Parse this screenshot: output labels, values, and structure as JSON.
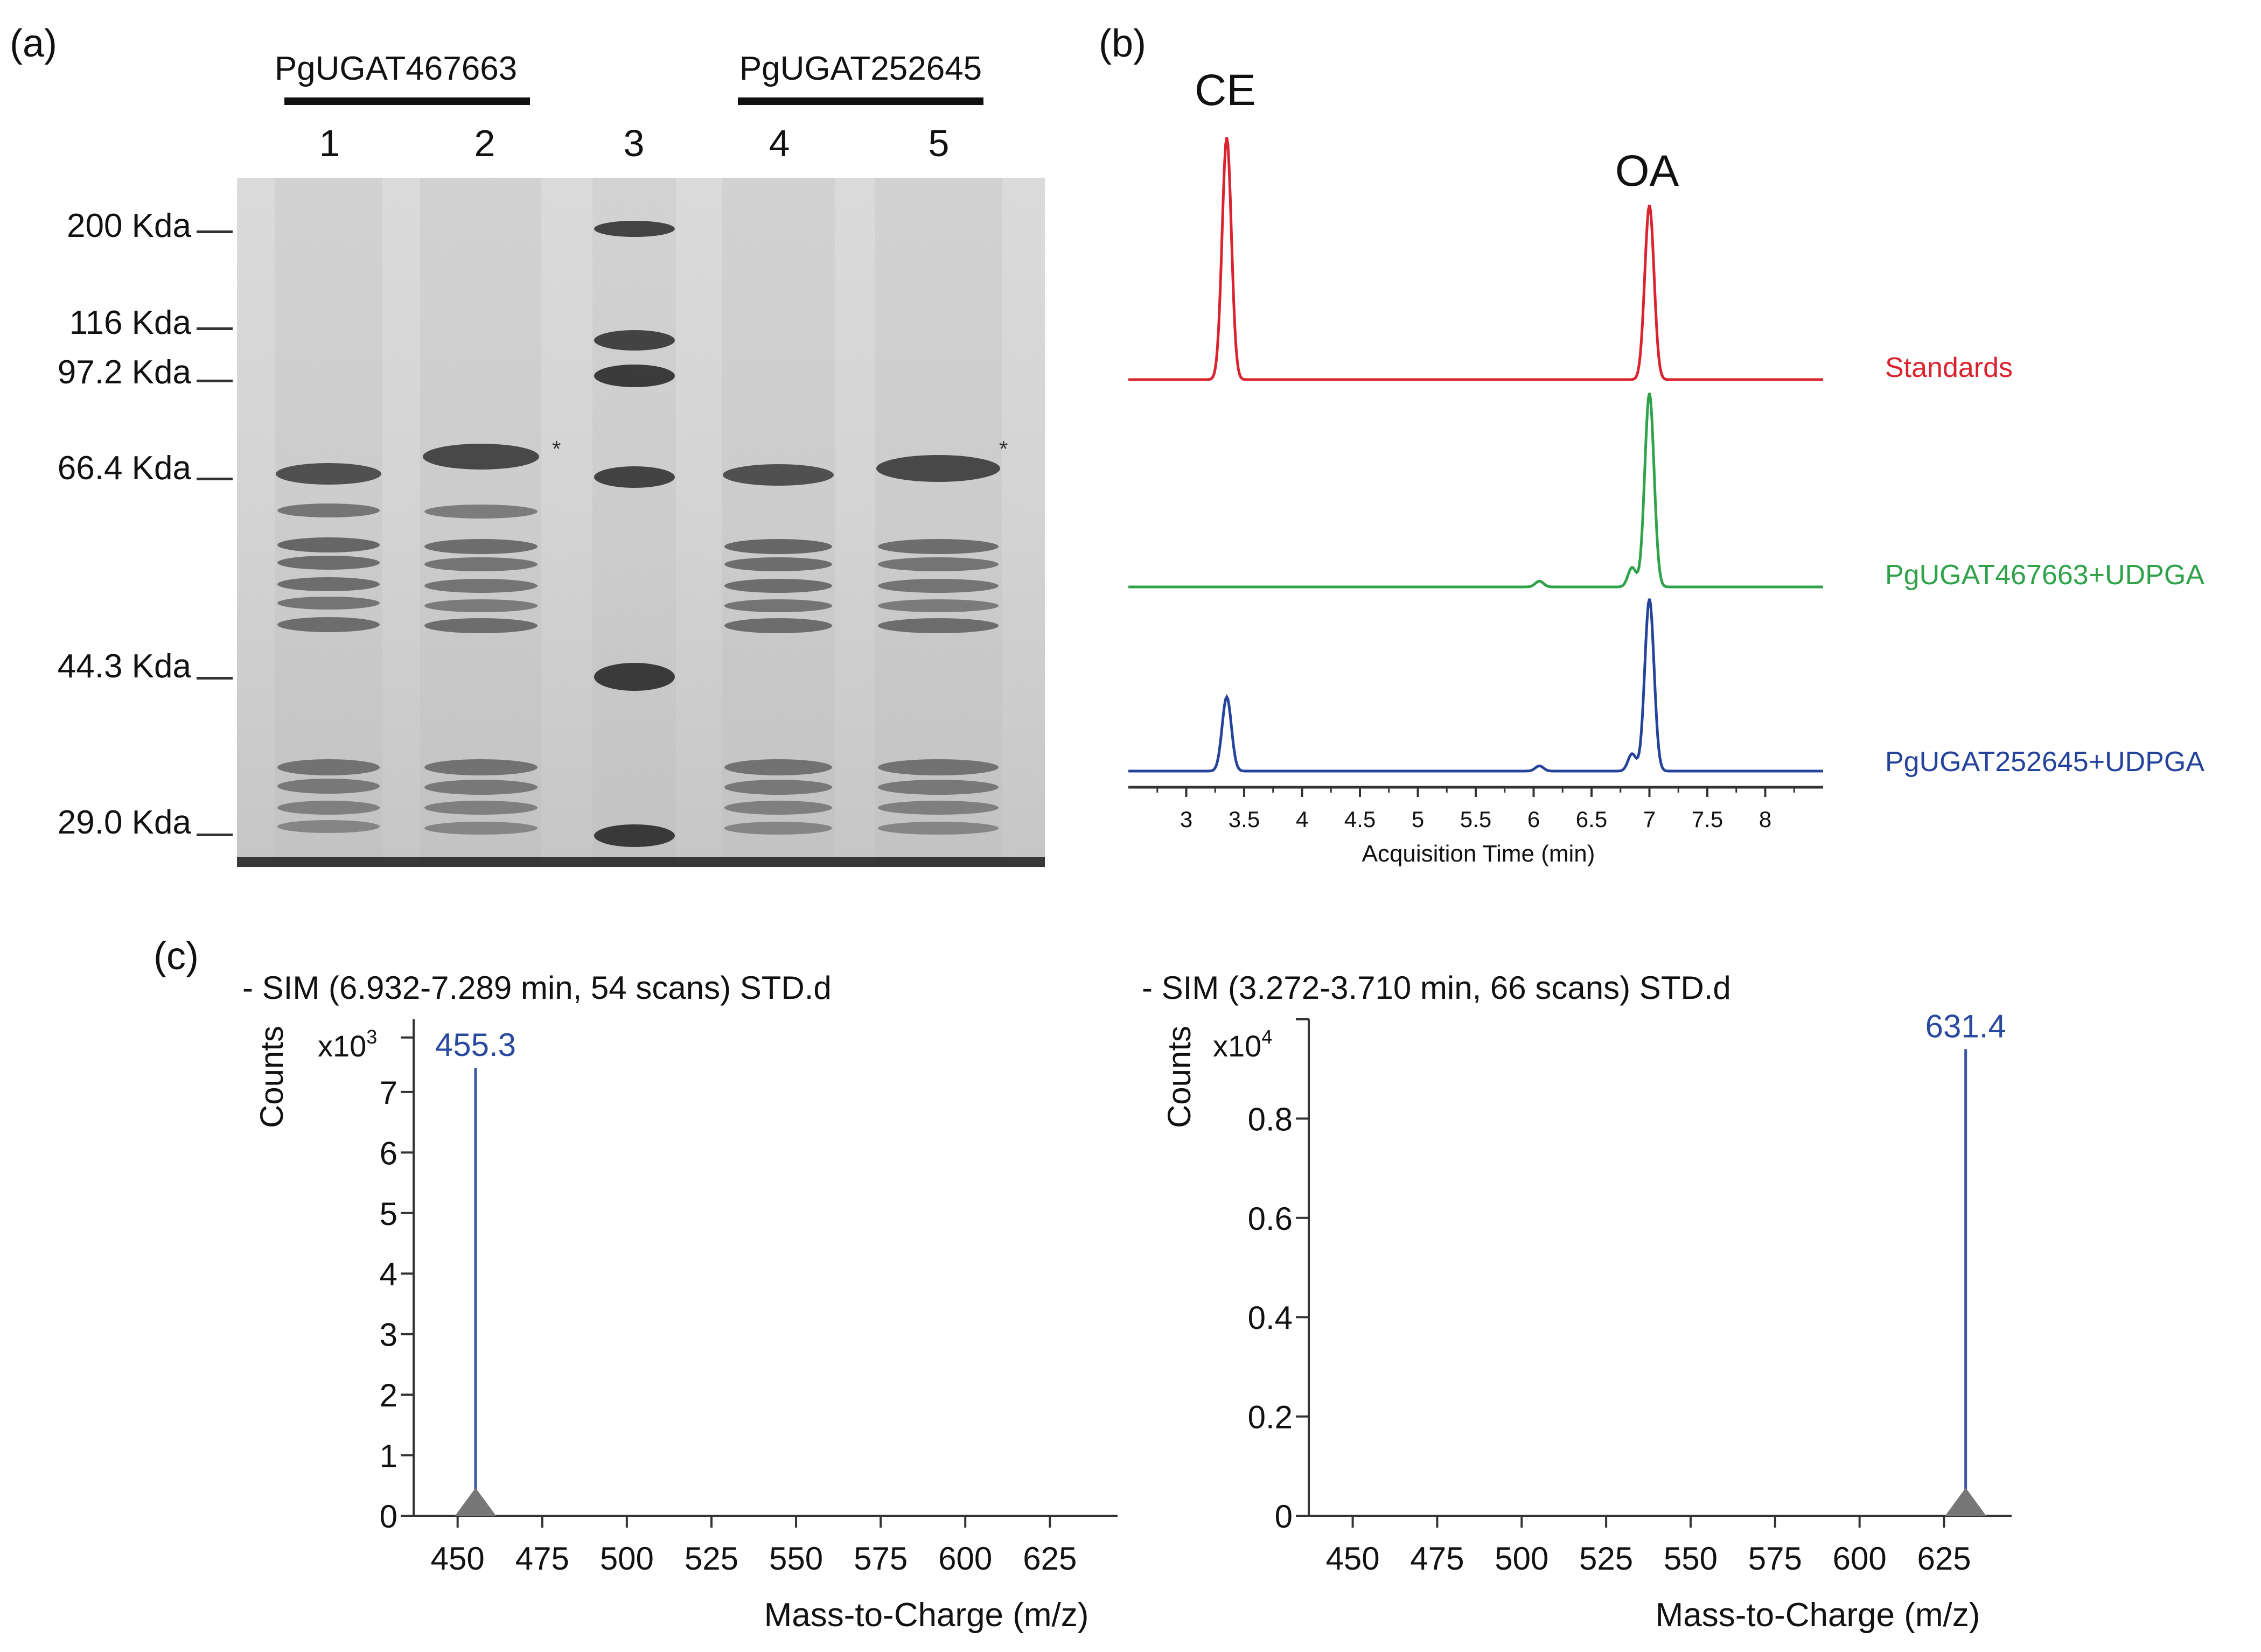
{
  "panel_a": {
    "label": "(a)",
    "group_labels": [
      "PgUGAT467663",
      "PgUGAT252645"
    ],
    "lane_labels": [
      "1",
      "2",
      "3",
      "4",
      "5"
    ],
    "marker_labels": [
      "200 Kda",
      "116 Kda",
      "97.2 Kda",
      "66.4 Kda",
      "44.3 Kda",
      "29.0 Kda"
    ],
    "band_mark": "*"
  },
  "panel_b": {
    "label": "(b)",
    "peak_labels": [
      "CE",
      "OA"
    ],
    "trace_labels": [
      "Standards",
      "PgUGAT467663+UDPGA",
      "PgUGAT252645+UDPGA"
    ],
    "trace_colors": [
      "#d9232e",
      "#2fa24a",
      "#24439a"
    ],
    "xlabel": "Acquisition Time (min)",
    "xticks": [
      "3",
      "3.5",
      "4",
      "4.5",
      "5",
      "5.5",
      "6",
      "6.5",
      "7",
      "7.5",
      "8"
    ]
  },
  "panel_c": {
    "label": "(c)",
    "spectra": [
      {
        "title": "- SIM (6.932-7.289 min, 54 scans) STD.d",
        "ylabel": "Counts",
        "multiplier_base": "x10",
        "multiplier_exp": "3",
        "yticks": [
          "0",
          "1",
          "2",
          "3",
          "4",
          "5",
          "6",
          "7"
        ],
        "xticks": [
          "450",
          "475",
          "500",
          "525",
          "550",
          "575",
          "600",
          "625"
        ],
        "xlabel": "Mass-to-Charge (m/z)",
        "peak_label": "455.3"
      },
      {
        "title": "- SIM (3.272-3.710 min, 66 scans) STD.d",
        "ylabel": "Counts",
        "multiplier_base": "x10",
        "multiplier_exp": "4",
        "yticks": [
          "0",
          "0.2",
          "0.4",
          "0.6",
          "0.8"
        ],
        "xticks": [
          "450",
          "475",
          "500",
          "525",
          "550",
          "575",
          "600",
          "625"
        ],
        "xlabel": "Mass-to-Charge (m/z)",
        "peak_label": "631.4"
      }
    ]
  },
  "chart_data": [
    {
      "type": "line",
      "xlabel": "Acquisition Time (min)",
      "xlim": [
        2.5,
        8.5
      ],
      "peaks": [
        {
          "series": "Standards",
          "peaks": [
            {
              "x": 3.35,
              "y": 1.0,
              "label": "CE"
            },
            {
              "x": 7.0,
              "y": 0.72,
              "label": "OA"
            }
          ]
        },
        {
          "series": "PgUGAT467663+UDPGA",
          "peaks": [
            {
              "x": 6.05,
              "y": 0.03
            },
            {
              "x": 6.85,
              "y": 0.1
            },
            {
              "x": 7.0,
              "y": 1.0
            }
          ]
        },
        {
          "series": "PgUGAT252645+UDPGA",
          "peaks": [
            {
              "x": 3.35,
              "y": 0.43
            },
            {
              "x": 6.05,
              "y": 0.03
            },
            {
              "x": 6.85,
              "y": 0.1
            },
            {
              "x": 7.0,
              "y": 1.0
            }
          ]
        }
      ]
    },
    {
      "type": "bar",
      "title": "- SIM (6.932-7.289 min, 54 scans) STD.d",
      "xlabel": "Mass-to-Charge (m/z)",
      "ylabel": "Counts",
      "xlim": [
        437,
        645
      ],
      "ylim": [
        0,
        8.2
      ],
      "y_multiplier": "x10^3",
      "x": [
        455.3
      ],
      "values": [
        7.4
      ]
    },
    {
      "type": "bar",
      "title": "- SIM (3.272-3.710 min, 66 scans) STD.d",
      "xlabel": "Mass-to-Charge (m/z)",
      "ylabel": "Counts",
      "xlim": [
        437,
        645
      ],
      "ylim": [
        0,
        1.0
      ],
      "y_multiplier": "x10^4",
      "x": [
        631.4
      ],
      "values": [
        0.94
      ]
    }
  ]
}
